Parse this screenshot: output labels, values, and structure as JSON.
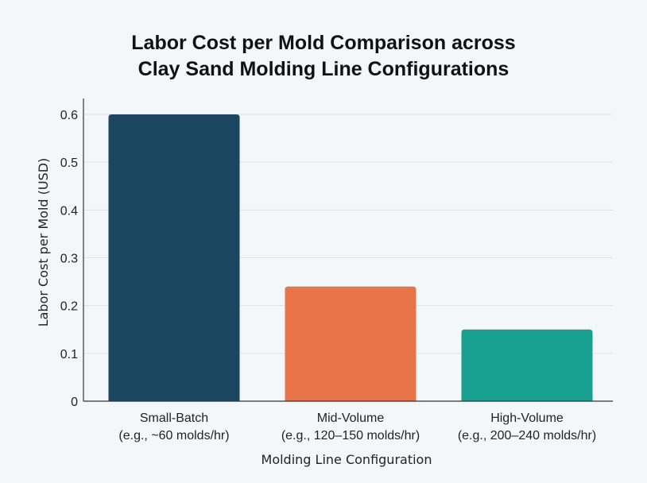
{
  "chart_data": {
    "type": "bar",
    "title_lines": [
      "Labor Cost per Mold Comparison across",
      "Clay Sand Molding Line Configurations"
    ],
    "xlabel": "Molding Line Configuration",
    "ylabel": "Labor Cost per Mold (USD)",
    "categories": [
      [
        "Small-Batch",
        "(e.g., ~60 molds/hr)"
      ],
      [
        "Mid-Volume",
        "(e.g., 120–150 molds/hr)"
      ],
      [
        "High-Volume",
        "(e.g., 200–240 molds/hr)"
      ]
    ],
    "values": [
      0.6,
      0.24,
      0.15
    ],
    "colors": [
      "#1b4660",
      "#e8744a",
      "#17a090"
    ],
    "ylim": [
      0,
      0.6
    ],
    "yticks": [
      0,
      0.1,
      0.2,
      0.3,
      0.4,
      0.5,
      0.6
    ],
    "ytick_labels": [
      "0",
      "0.1",
      "0.2",
      "0.3",
      "0.4",
      "0.5",
      "0.6"
    ],
    "grid": "horizontal",
    "legend": "none"
  }
}
